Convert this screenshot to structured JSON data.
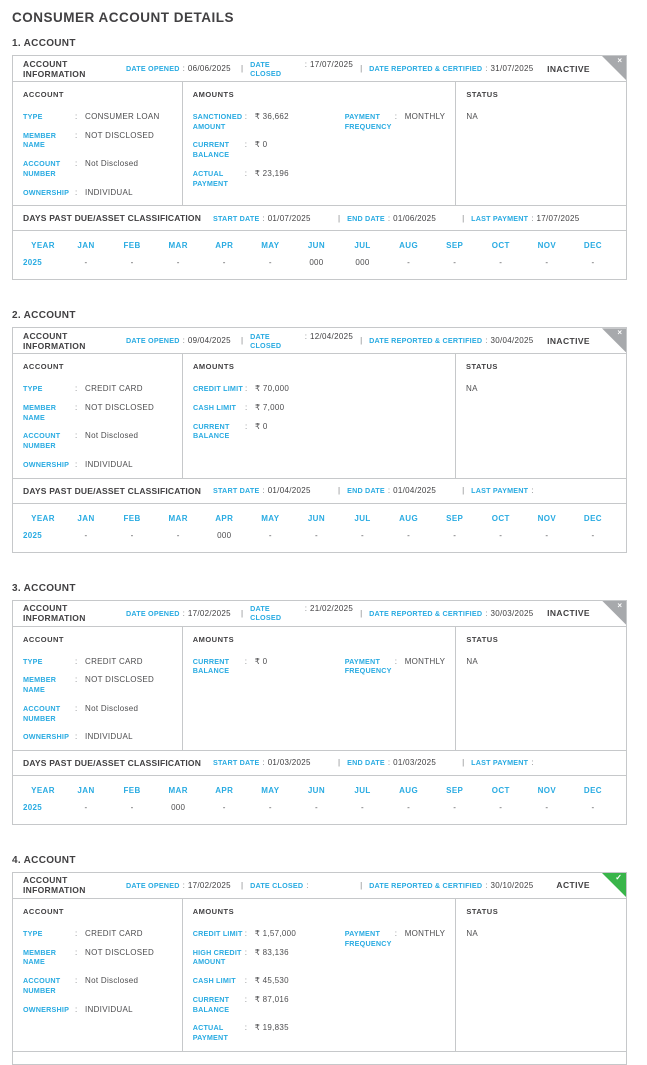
{
  "page_title": "CONSUMER ACCOUNT DETAILS",
  "colors": {
    "accent_cyan": "#29abe2",
    "text_dark": "#414042",
    "inactive_gray": "#a7a9ac",
    "active_green": "#39b54a"
  },
  "shared": {
    "account_information_label": "ACCOUNT INFORMATION",
    "date_opened_label": "DATE OPENED",
    "date_closed_label": "DATE CLOSED",
    "date_reported_label": "DATE REPORTED & CERTIFIED",
    "account_header": "ACCOUNT",
    "amounts_header": "AMOUNTS",
    "status_header": "STATUS",
    "dpd_title": "DAYS PAST DUE/ASSET CLASSIFICATION",
    "start_date_label": "START DATE",
    "end_date_label": "END DATE",
    "last_payment_label": "LAST PAYMENT",
    "year_header": "YEAR",
    "months": [
      "JAN",
      "FEB",
      "MAR",
      "APR",
      "MAY",
      "JUN",
      "JUL",
      "AUG",
      "SEP",
      "OCT",
      "NOV",
      "DEC"
    ],
    "inactive_icon": "×",
    "active_icon": "✓",
    "colon": ":",
    "pipe": "|"
  },
  "accounts": [
    {
      "section_title": "1. ACCOUNT",
      "status": "INACTIVE",
      "status_type": "inactive",
      "date_opened": "06/06/2025",
      "date_closed": "17/07/2025",
      "date_reported": "31/07/2025",
      "account_fields": [
        {
          "label": "TYPE",
          "value": "CONSUMER LOAN"
        },
        {
          "label": "MEMBER NAME",
          "value": "NOT DISCLOSED"
        },
        {
          "label": "ACCOUNT NUMBER",
          "value": "Not Disclosed"
        },
        {
          "label": "OWNERSHIP",
          "value": "INDIVIDUAL"
        }
      ],
      "amount_fields": [
        {
          "label": "SANCTIONED AMOUNT",
          "value": "₹ 36,662"
        },
        {
          "label": "CURRENT BALANCE",
          "value": "₹ 0"
        },
        {
          "label": "ACTUAL PAYMENT",
          "value": "₹ 23,196"
        }
      ],
      "amount_fields_right": [
        {
          "label": "PAYMENT FREQUENCY",
          "value": "MONTHLY"
        }
      ],
      "status_value": "NA",
      "dpd": {
        "start_date": "01/07/2025",
        "end_date": "01/06/2025",
        "last_payment": "17/07/2025",
        "rows": [
          {
            "year": "2025",
            "values": [
              "-",
              "-",
              "-",
              "-",
              "-",
              "000",
              "000",
              "-",
              "-",
              "-",
              "-",
              "-"
            ]
          }
        ]
      }
    },
    {
      "section_title": "2. ACCOUNT",
      "status": "INACTIVE",
      "status_type": "inactive",
      "date_opened": "09/04/2025",
      "date_closed": "12/04/2025",
      "date_reported": "30/04/2025",
      "account_fields": [
        {
          "label": "TYPE",
          "value": "CREDIT CARD"
        },
        {
          "label": "MEMBER NAME",
          "value": "NOT DISCLOSED"
        },
        {
          "label": "ACCOUNT NUMBER",
          "value": "Not Disclosed"
        },
        {
          "label": "OWNERSHIP",
          "value": "INDIVIDUAL"
        }
      ],
      "amount_fields": [
        {
          "label": "CREDIT LIMIT",
          "value": "₹ 70,000"
        },
        {
          "label": "CASH LIMIT",
          "value": "₹ 7,000"
        },
        {
          "label": "CURRENT BALANCE",
          "value": "₹ 0"
        }
      ],
      "amount_fields_right": [],
      "status_value": "NA",
      "dpd": {
        "start_date": "01/04/2025",
        "end_date": "01/04/2025",
        "last_payment": "",
        "rows": [
          {
            "year": "2025",
            "values": [
              "-",
              "-",
              "-",
              "000",
              "-",
              "-",
              "-",
              "-",
              "-",
              "-",
              "-",
              "-"
            ]
          }
        ]
      }
    },
    {
      "section_title": "3. ACCOUNT",
      "status": "INACTIVE",
      "status_type": "inactive",
      "date_opened": "17/02/2025",
      "date_closed": "21/02/2025",
      "date_reported": "30/03/2025",
      "account_fields": [
        {
          "label": "TYPE",
          "value": "CREDIT CARD"
        },
        {
          "label": "MEMBER NAME",
          "value": "NOT DISCLOSED"
        },
        {
          "label": "ACCOUNT NUMBER",
          "value": "Not Disclosed"
        },
        {
          "label": "OWNERSHIP",
          "value": "INDIVIDUAL"
        }
      ],
      "amount_fields": [
        {
          "label": "CURRENT BALANCE",
          "value": "₹ 0"
        }
      ],
      "amount_fields_right": [
        {
          "label": "PAYMENT FREQUENCY",
          "value": "MONTHLY"
        }
      ],
      "status_value": "NA",
      "dpd": {
        "start_date": "01/03/2025",
        "end_date": "01/03/2025",
        "last_payment": "",
        "rows": [
          {
            "year": "2025",
            "values": [
              "-",
              "-",
              "000",
              "-",
              "-",
              "-",
              "-",
              "-",
              "-",
              "-",
              "-",
              "-"
            ]
          }
        ]
      }
    },
    {
      "section_title": "4. ACCOUNT",
      "status": "ACTIVE",
      "status_type": "active",
      "date_opened": "17/02/2025",
      "date_closed": "",
      "date_reported": "30/10/2025",
      "account_fields": [
        {
          "label": "TYPE",
          "value": "CREDIT CARD"
        },
        {
          "label": "MEMBER NAME",
          "value": "NOT DISCLOSED"
        },
        {
          "label": "ACCOUNT NUMBER",
          "value": "Not Disclosed"
        },
        {
          "label": "OWNERSHIP",
          "value": "INDIVIDUAL"
        }
      ],
      "amount_fields": [
        {
          "label": "CREDIT LIMIT",
          "value": "₹ 1,57,000"
        },
        {
          "label": "HIGH CREDIT AMOUNT",
          "value": "₹ 83,136"
        },
        {
          "label": "CASH LIMIT",
          "value": "₹ 45,530"
        },
        {
          "label": "CURRENT BALANCE",
          "value": "₹ 87,016"
        },
        {
          "label": "ACTUAL PAYMENT",
          "value": "₹ 19,835"
        }
      ],
      "amount_fields_right": [
        {
          "label": "PAYMENT FREQUENCY",
          "value": "MONTHLY"
        }
      ],
      "status_value": "NA",
      "dpd": null
    }
  ]
}
